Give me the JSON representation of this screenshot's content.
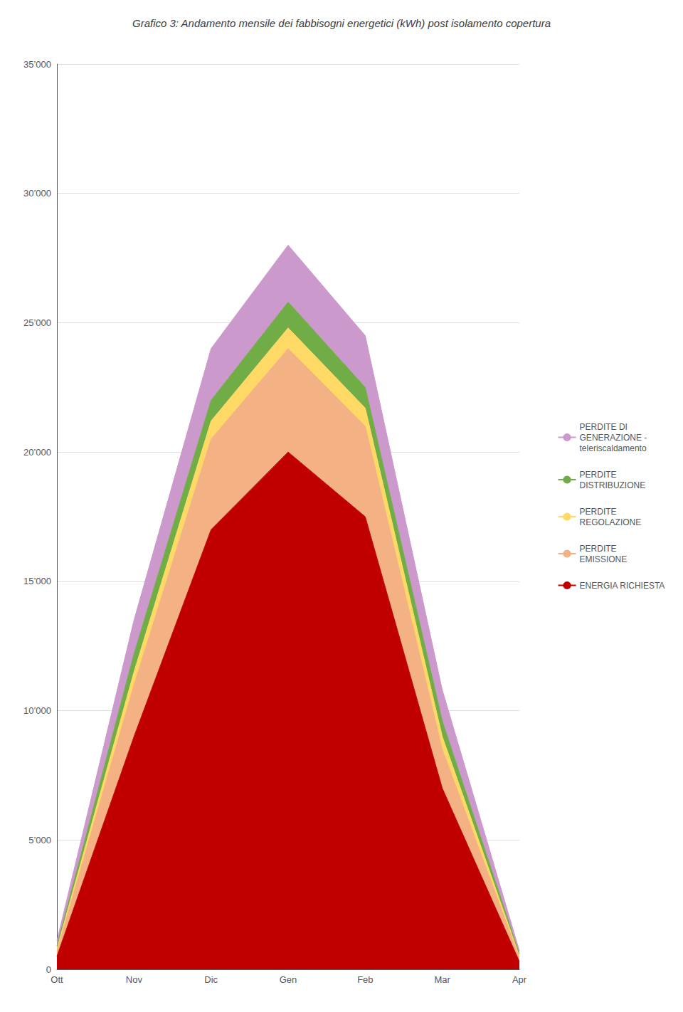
{
  "chart_data": {
    "type": "area",
    "title": "Grafico 3: Andamento mensile dei fabbisogni energetici (kWh) post isolamento copertura",
    "categories": [
      "Ott",
      "Nov",
      "Dic",
      "Gen",
      "Feb",
      "Mar",
      "Apr"
    ],
    "stacked": true,
    "grid": true,
    "legend": "right",
    "ylim": [
      0,
      35000
    ],
    "yticks": [
      0,
      {
        "value": 5000,
        "label": "5’000"
      },
      {
        "value": 10000,
        "label": "10’000"
      },
      {
        "value": 15000,
        "label": "15’000"
      },
      {
        "value": 20000,
        "label": "20’000"
      },
      {
        "value": 25000,
        "label": "25’000"
      },
      {
        "value": 30000,
        "label": "30’000"
      },
      {
        "value": 35000,
        "label": "35’000"
      }
    ],
    "series": [
      {
        "name": "ENERGIA RICHIESTA",
        "color": "#c00000",
        "values": [
          500,
          9000,
          17000,
          20000,
          17500,
          7000,
          300
        ]
      },
      {
        "name": "PERDITE\nEMISSIONE",
        "color": "#f4b183",
        "values": [
          200,
          2000,
          3500,
          4000,
          3500,
          1500,
          150
        ]
      },
      {
        "name": "PERDITE\nREGOLAZIONE",
        "color": "#ffd966",
        "values": [
          100,
          500,
          700,
          800,
          700,
          500,
          70
        ]
      },
      {
        "name": "PERDITE\nDISTRIBUZIONE",
        "color": "#70ad47",
        "values": [
          100,
          700,
          800,
          1000,
          800,
          600,
          70
        ]
      },
      {
        "name": "PERDITE DI\nGENERAZIONE -\nteleriscaldamento",
        "color": "#cc99cc",
        "values": [
          200,
          1300,
          2000,
          2200,
          2000,
          1200,
          130
        ]
      }
    ]
  }
}
